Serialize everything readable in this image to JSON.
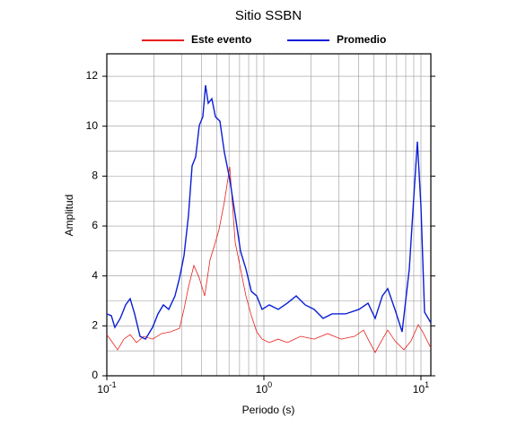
{
  "chart_data": {
    "type": "line",
    "title": "Sitio SSBN",
    "x_label": "Periodo (s)",
    "y_label": "Amplitud",
    "x_log": true,
    "grid": true,
    "xlim": [
      0.1,
      11.56
    ],
    "ylim": [
      0,
      12.9
    ],
    "xticks": [
      {
        "value": 0.1,
        "label": "10",
        "exponent": "-1"
      },
      {
        "value": 1,
        "label": "10",
        "exponent": "0"
      },
      {
        "value": 10,
        "label": "10",
        "exponent": "1"
      }
    ],
    "x_minor_ticks": [
      0.2,
      0.3,
      0.4,
      0.5,
      0.6,
      0.7,
      0.8,
      0.9,
      2,
      3,
      4,
      5,
      6,
      7,
      8,
      9
    ],
    "yticks": [
      0,
      2,
      4,
      6,
      8,
      10,
      12
    ],
    "y_minor_ticks": [
      1,
      3,
      5,
      7,
      9,
      11
    ],
    "series": [
      {
        "name": "Este evento",
        "color": "#e8201c",
        "x": [
          0.1,
          0.1068,
          0.1171,
          0.1284,
          0.1408,
          0.1544,
          0.1715,
          0.1956,
          0.2232,
          0.2544,
          0.2903,
          0.31,
          0.3311,
          0.3584,
          0.3878,
          0.4197,
          0.454,
          0.4914,
          0.5179,
          0.5604,
          0.6065,
          0.6566,
          0.7101,
          0.7686,
          0.8318,
          0.9,
          0.974,
          1.082,
          1.234,
          1.408,
          1.715,
          2.089,
          2.545,
          3.1,
          3.777,
          4.308,
          4.725,
          5.112,
          5.606,
          6.145,
          6.828,
          7.788,
          8.652,
          9.613,
          10.4,
          11.56
        ],
        "values": [
          1.65,
          1.4,
          1.04,
          1.47,
          1.65,
          1.33,
          1.58,
          1.47,
          1.69,
          1.76,
          1.9,
          2.66,
          3.56,
          4.42,
          3.92,
          3.2,
          4.64,
          5.35,
          5.86,
          6.97,
          8.37,
          5.35,
          4.28,
          3.2,
          2.41,
          1.76,
          1.47,
          1.33,
          1.47,
          1.33,
          1.58,
          1.47,
          1.69,
          1.47,
          1.58,
          1.83,
          1.33,
          0.93,
          1.4,
          1.83,
          1.4,
          1.04,
          1.4,
          2.05,
          1.69,
          1.11
        ]
      },
      {
        "name": "Promedio",
        "color": "#0a1ed6",
        "x": [
          0.1,
          0.1068,
          0.1125,
          0.1218,
          0.1318,
          0.1408,
          0.1503,
          0.1627,
          0.1761,
          0.1956,
          0.2117,
          0.2291,
          0.2479,
          0.2717,
          0.2903,
          0.31,
          0.3311,
          0.3491,
          0.3679,
          0.3878,
          0.4087,
          0.4252,
          0.4422,
          0.4662,
          0.4914,
          0.5248,
          0.5604,
          0.6065,
          0.6566,
          0.7101,
          0.7686,
          0.8318,
          0.9,
          0.974,
          1.082,
          1.234,
          1.408,
          1.606,
          1.832,
          2.089,
          2.383,
          2.718,
          3.311,
          4.034,
          4.603,
          5.112,
          5.679,
          6.145,
          6.828,
          7.586,
          8.428,
          9.0,
          9.487,
          10.0,
          10.54,
          11.56
        ],
        "values": [
          2.48,
          2.41,
          1.94,
          2.3,
          2.84,
          3.09,
          2.48,
          1.58,
          1.47,
          1.94,
          2.48,
          2.84,
          2.66,
          3.2,
          3.92,
          4.81,
          6.43,
          8.41,
          8.77,
          10.03,
          10.38,
          11.64,
          10.92,
          11.1,
          10.38,
          10.2,
          8.95,
          7.87,
          6.43,
          4.99,
          4.28,
          3.38,
          3.2,
          2.66,
          2.84,
          2.66,
          2.91,
          3.2,
          2.84,
          2.66,
          2.3,
          2.48,
          2.48,
          2.66,
          2.91,
          2.3,
          3.2,
          3.49,
          2.66,
          1.76,
          4.28,
          7.15,
          9.38,
          6.79,
          2.55,
          2.12
        ]
      }
    ]
  }
}
